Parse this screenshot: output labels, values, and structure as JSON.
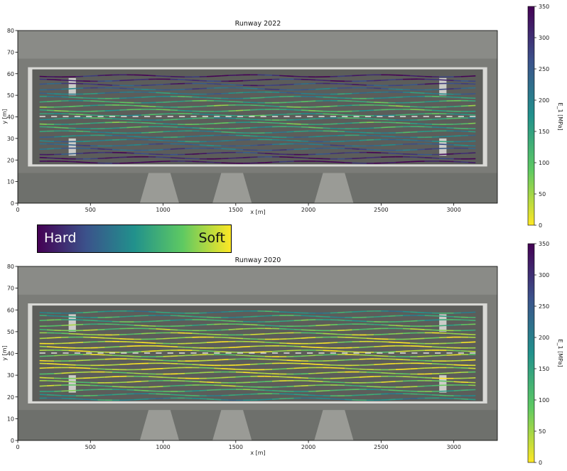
{
  "legend": {
    "left_label": "Hard",
    "right_label": "Soft"
  },
  "chart_data": [
    {
      "type": "scatter",
      "title": "Runway 2022",
      "xlabel": "x [m]",
      "ylabel": "y [m]",
      "xlim": [
        0,
        3300
      ],
      "ylim": [
        0,
        80
      ],
      "xticks": [
        0,
        500,
        1000,
        1500,
        2000,
        2500,
        3000
      ],
      "yticks": [
        0,
        10,
        20,
        30,
        40,
        50,
        60,
        70,
        80
      ],
      "colorbar": {
        "label": "E_1 [MPa]",
        "range": [
          0,
          350
        ],
        "ticks": [
          0,
          50,
          100,
          150,
          200,
          250,
          300,
          350
        ],
        "colormap": "viridis_r"
      },
      "runway_extent": {
        "x": [
          100,
          3200
        ],
        "y": [
          18,
          62
        ]
      },
      "track_lines_y": [
        19,
        21,
        23,
        25,
        27,
        29,
        31,
        33,
        35,
        37,
        39,
        41,
        43,
        45,
        47,
        49,
        51,
        53,
        55,
        57,
        59
      ],
      "track_modulus_mpa": [
        340,
        320,
        300,
        250,
        230,
        200,
        190,
        160,
        140,
        120,
        150,
        140,
        120,
        110,
        130,
        160,
        200,
        240,
        280,
        310,
        330
      ]
    },
    {
      "type": "scatter",
      "title": "Runway 2020",
      "xlabel": "x [m]",
      "ylabel": "y [m]",
      "xlim": [
        0,
        3300
      ],
      "ylim": [
        0,
        80
      ],
      "xticks": [
        0,
        500,
        1000,
        1500,
        2000,
        2500,
        3000
      ],
      "yticks": [
        0,
        10,
        20,
        30,
        40,
        50,
        60,
        70,
        80
      ],
      "colorbar": {
        "label": "E_1 [MPa]",
        "range": [
          0,
          350
        ],
        "ticks": [
          0,
          50,
          100,
          150,
          200,
          250,
          300,
          350
        ],
        "colormap": "viridis_r"
      },
      "runway_extent": {
        "x": [
          100,
          3200
        ],
        "y": [
          18,
          62
        ]
      },
      "track_lines_y": [
        19,
        21,
        23,
        25,
        27,
        29,
        31,
        33,
        35,
        37,
        39,
        41,
        43,
        45,
        47,
        49,
        51,
        53,
        55,
        57,
        59
      ],
      "track_modulus_mpa": [
        180,
        150,
        120,
        80,
        60,
        40,
        50,
        30,
        20,
        40,
        60,
        40,
        20,
        30,
        40,
        60,
        80,
        100,
        130,
        150,
        170
      ]
    }
  ]
}
